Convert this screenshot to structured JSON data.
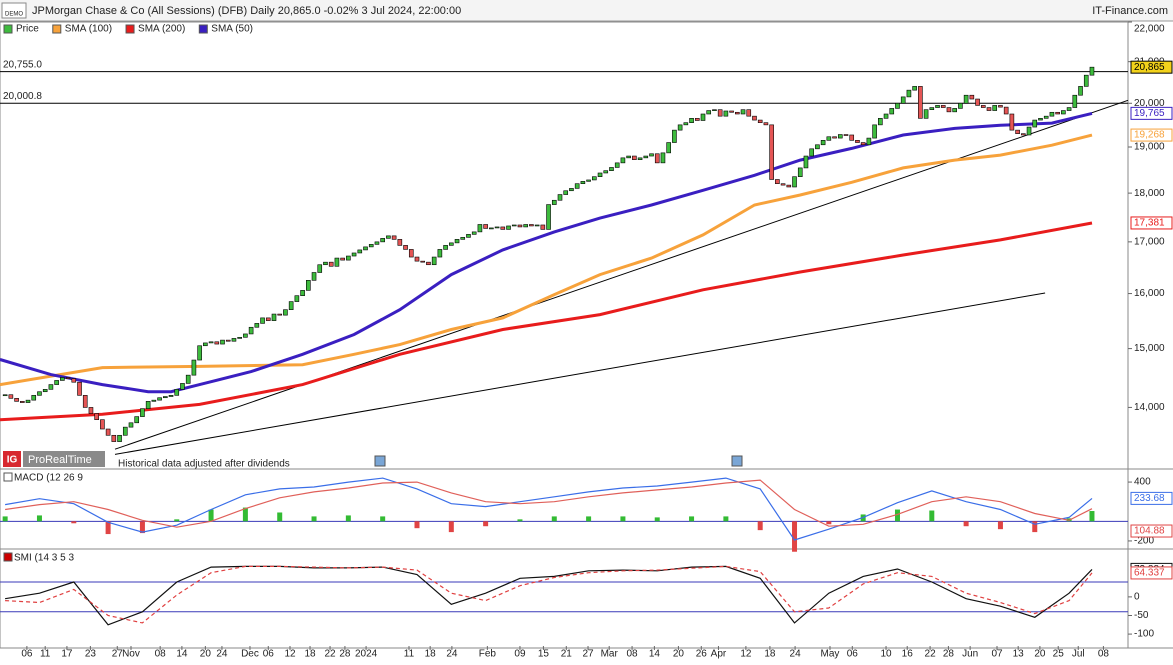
{
  "chart_data": [
    {
      "type": "candlestick",
      "title": "JPMorgan Chase & Co (All Sessions) (DFB) Daily 20,865.0 -0.02% 3 Jul 2024, 22:00:00",
      "source": "IT-Finance.com",
      "badge": "DEMO",
      "logo": "IG",
      "brand": "ProRealTime",
      "annotation": "Historical data adjusted after dividends",
      "log_scale": true,
      "xlim": [
        -0.9,
        196.3
      ],
      "xticks": [
        {
          "value": 3.8,
          "label": "06"
        },
        {
          "value": 7.0,
          "label": "11"
        },
        {
          "value": 10.8,
          "label": "17"
        },
        {
          "value": 14.9,
          "label": "23"
        },
        {
          "value": 19.6,
          "label": "27"
        },
        {
          "value": 22.0,
          "label": "Nov"
        },
        {
          "value": 27.1,
          "label": "08"
        },
        {
          "value": 30.9,
          "label": "14"
        },
        {
          "value": 35.0,
          "label": "20"
        },
        {
          "value": 37.9,
          "label": "24"
        },
        {
          "value": 42.8,
          "label": "Dec"
        },
        {
          "value": 46.0,
          "label": "06"
        },
        {
          "value": 49.8,
          "label": "12"
        },
        {
          "value": 53.3,
          "label": "18"
        },
        {
          "value": 56.8,
          "label": "22"
        },
        {
          "value": 59.4,
          "label": "28"
        },
        {
          "value": 63.1,
          "label": "2024"
        },
        {
          "value": 70.6,
          "label": "11"
        },
        {
          "value": 74.3,
          "label": "18"
        },
        {
          "value": 78.1,
          "label": "24"
        },
        {
          "value": 84.3,
          "label": "Feb"
        },
        {
          "value": 90.0,
          "label": "09"
        },
        {
          "value": 94.1,
          "label": "15"
        },
        {
          "value": 98.1,
          "label": "21"
        },
        {
          "value": 101.9,
          "label": "27"
        },
        {
          "value": 105.6,
          "label": "Mar"
        },
        {
          "value": 109.6,
          "label": "08"
        },
        {
          "value": 113.5,
          "label": "14"
        },
        {
          "value": 117.7,
          "label": "20"
        },
        {
          "value": 121.7,
          "label": "26"
        },
        {
          "value": 124.7,
          "label": "Apr"
        },
        {
          "value": 129.5,
          "label": "12"
        },
        {
          "value": 133.7,
          "label": "18"
        },
        {
          "value": 138.1,
          "label": "24"
        },
        {
          "value": 144.2,
          "label": "May"
        },
        {
          "value": 148.1,
          "label": "06"
        },
        {
          "value": 154.0,
          "label": "10"
        },
        {
          "value": 157.7,
          "label": "16"
        },
        {
          "value": 161.7,
          "label": "22"
        },
        {
          "value": 164.9,
          "label": "28"
        },
        {
          "value": 168.7,
          "label": "Jun"
        },
        {
          "value": 173.4,
          "label": "07"
        },
        {
          "value": 177.1,
          "label": "13"
        },
        {
          "value": 180.9,
          "label": "20"
        },
        {
          "value": 184.1,
          "label": "25"
        },
        {
          "value": 187.6,
          "label": "Jul"
        },
        {
          "value": 192.0,
          "label": "08"
        }
      ],
      "ylim": [
        13040,
        22000
      ],
      "yticks": [
        {
          "value": 22000,
          "label": "22,000"
        },
        {
          "value": 21000,
          "label": "21,000"
        },
        {
          "value": 20000,
          "label": "20,000"
        },
        {
          "value": 19000,
          "label": "19,000"
        },
        {
          "value": 18000,
          "label": "18,000"
        },
        {
          "value": 17000,
          "label": "17,000"
        },
        {
          "value": 16000,
          "label": "16,000"
        },
        {
          "value": 15000,
          "label": "15,000"
        },
        {
          "value": 14000,
          "label": "14,000"
        }
      ],
      "series": [
        {
          "name": "Price",
          "color": "#3dbb3d",
          "down_color": "#e55555",
          "end_label": "20,865",
          "end_fill": "#f2d21b",
          "values": [
            14210,
            14150,
            14100,
            14080,
            14120,
            14200,
            14260,
            14300,
            14380,
            14450,
            14500,
            14480,
            14420,
            14200,
            14000,
            13900,
            13800,
            13650,
            13550,
            13450,
            13550,
            13680,
            13750,
            13850,
            13980,
            14100,
            14120,
            14160,
            14180,
            14200,
            14300,
            14400,
            14540,
            14800,
            15050,
            15100,
            15120,
            15080,
            15150,
            15130,
            15180,
            15200,
            15260,
            15380,
            15450,
            15550,
            15500,
            15620,
            15600,
            15700,
            15850,
            15960,
            16060,
            16250,
            16400,
            16550,
            16600,
            16520,
            16680,
            16640,
            16720,
            16780,
            16840,
            16900,
            16950,
            17000,
            17070,
            17120,
            17050,
            16930,
            16850,
            16700,
            16620,
            16600,
            16550,
            16700,
            16850,
            16930,
            16980,
            17050,
            17090,
            17150,
            17200,
            17350,
            17270,
            17280,
            17300,
            17250,
            17320,
            17340,
            17300,
            17350,
            17320,
            17340,
            17250,
            17760,
            17850,
            17970,
            18050,
            18100,
            18200,
            18250,
            18280,
            18350,
            18430,
            18480,
            18550,
            18650,
            18760,
            18800,
            18720,
            18760,
            18800,
            18850,
            18650,
            18870,
            19100,
            19380,
            19500,
            19550,
            19650,
            19600,
            19750,
            19830,
            19850,
            19700,
            19820,
            19790,
            19750,
            19850,
            19700,
            19610,
            19550,
            19500,
            18290,
            18200,
            18170,
            18130,
            18350,
            18540,
            18800,
            18960,
            19050,
            19150,
            19230,
            19200,
            19280,
            19270,
            19150,
            19100,
            19050,
            19200,
            19500,
            19650,
            19750,
            19880,
            20000,
            20150,
            20310,
            20400,
            19650,
            19850,
            19900,
            19950,
            19900,
            19800,
            19880,
            20000,
            20190,
            20100,
            19950,
            19900,
            19830,
            19950,
            19910,
            19750,
            19380,
            19300,
            19270,
            19450,
            19610,
            19650,
            19700,
            19790,
            19750,
            19830,
            19900,
            20190,
            20400,
            20670,
            20865
          ]
        },
        {
          "name": "SMA (100)",
          "color": "#f7a23b",
          "end_label": "19,268",
          "x": [
            -0.9,
            17,
            34,
            52,
            61,
            69,
            78,
            87,
            96,
            104,
            113,
            122,
            131,
            139,
            148,
            157,
            166,
            174,
            183,
            190
          ],
          "values": [
            14380,
            14670,
            14690,
            14720,
            14900,
            15070,
            15340,
            15550,
            15980,
            16360,
            16680,
            17140,
            17750,
            17960,
            18230,
            18540,
            18710,
            18820,
            19040,
            19268
          ]
        },
        {
          "name": "SMA (200)",
          "color": "#e81c1c",
          "end_label": "17,381",
          "x": [
            -0.9,
            17,
            34,
            52,
            69,
            87,
            104,
            122,
            139,
            157,
            174,
            190
          ],
          "values": [
            13800,
            13890,
            14050,
            14380,
            14900,
            15340,
            15610,
            16070,
            16410,
            16740,
            17040,
            17381
          ]
        },
        {
          "name": "SMA (50)",
          "color": "#3a1fc1",
          "end_label": "19,765",
          "x": [
            -0.9,
            8,
            17,
            25,
            29,
            34,
            43,
            52,
            61,
            69,
            78,
            87,
            96,
            104,
            113,
            122,
            131,
            139,
            148,
            157,
            166,
            174,
            183,
            190
          ],
          "values": [
            14810,
            14550,
            14380,
            14260,
            14260,
            14380,
            14600,
            14900,
            15250,
            15700,
            16360,
            16840,
            17200,
            17480,
            17750,
            18060,
            18380,
            18710,
            18970,
            19270,
            19420,
            19490,
            19540,
            19765
          ]
        }
      ],
      "hlines": [
        {
          "value": 20755,
          "label": "20,755.0"
        },
        {
          "value": 20000.8,
          "label": "20,000.8"
        }
      ],
      "trendlines": [
        {
          "x": [
            19.2,
            196.3
          ],
          "values": [
            13330,
            20070
          ]
        },
        {
          "x": [
            19.2,
            181.8
          ],
          "values": [
            13250,
            16010
          ]
        }
      ]
    },
    {
      "type": "macd",
      "title": "MACD (12 26 9",
      "ylim": [
        -272,
        523
      ],
      "yticks": [
        400,
        -200
      ],
      "zero_color": "#3a3ab8",
      "x": [
        0,
        6,
        12,
        18,
        24,
        30,
        36,
        42,
        48,
        54,
        60,
        66,
        72,
        78,
        84,
        90,
        96,
        102,
        108,
        114,
        120,
        126,
        132,
        138,
        144,
        150,
        156,
        162,
        168,
        174,
        180,
        186,
        190
      ],
      "series": [
        {
          "color": "#3a6ee8",
          "end_label": "233.68",
          "values": [
            170,
            230,
            180,
            -10,
            -110,
            -40,
            120,
            270,
            330,
            350,
            400,
            440,
            330,
            180,
            150,
            200,
            250,
            300,
            340,
            360,
            400,
            440,
            330,
            -190,
            -80,
            40,
            190,
            310,
            200,
            120,
            -30,
            40,
            233.68
          ]
        },
        {
          "color": "#e0605a",
          "values": [
            120,
            170,
            200,
            120,
            10,
            -60,
            0,
            130,
            240,
            300,
            340,
            390,
            400,
            290,
            200,
            180,
            200,
            250,
            290,
            320,
            350,
            390,
            420,
            120,
            -50,
            -30,
            70,
            200,
            250,
            200,
            80,
            10,
            128.8
          ]
        }
      ],
      "histogram": {
        "color": "#33bb33",
        "down_color": "#e04444",
        "end_label": "104.88",
        "values": [
          50,
          60,
          -20,
          -130,
          -120,
          20,
          120,
          140,
          90,
          50,
          60,
          50,
          -70,
          -110,
          -50,
          20,
          50,
          50,
          50,
          40,
          50,
          50,
          -90,
          -310,
          -30,
          70,
          120,
          110,
          -50,
          -80,
          -110,
          30,
          104.88
        ]
      }
    },
    {
      "type": "smi",
      "title": "SMI (14 3 5 3",
      "ylim": [
        -132,
        126
      ],
      "yticks": [
        0,
        -50,
        -100
      ],
      "levels": [
        40,
        -40
      ],
      "level_color": "#3a3ab8",
      "x": [
        0,
        6,
        12,
        18,
        24,
        30,
        36,
        42,
        48,
        54,
        60,
        66,
        72,
        78,
        84,
        90,
        96,
        102,
        108,
        114,
        120,
        126,
        132,
        138,
        144,
        150,
        156,
        162,
        168,
        174,
        180,
        186,
        190
      ],
      "series": [
        {
          "color": "#111111",
          "end_label": "73.884",
          "values": [
            -5,
            10,
            40,
            -75,
            -40,
            40,
            80,
            82,
            82,
            78,
            78,
            80,
            60,
            -20,
            10,
            50,
            55,
            70,
            72,
            70,
            80,
            82,
            50,
            -70,
            10,
            55,
            75,
            40,
            -5,
            -25,
            -55,
            10,
            73.884
          ]
        },
        {
          "color": "#e04040",
          "dashed": true,
          "end_label": "64.337",
          "values": [
            -10,
            -15,
            20,
            -50,
            -70,
            5,
            65,
            82,
            82,
            80,
            78,
            80,
            72,
            10,
            -10,
            30,
            52,
            65,
            70,
            72,
            77,
            82,
            68,
            -40,
            -30,
            35,
            65,
            55,
            10,
            -15,
            -45,
            -10,
            64.337
          ]
        }
      ]
    }
  ]
}
